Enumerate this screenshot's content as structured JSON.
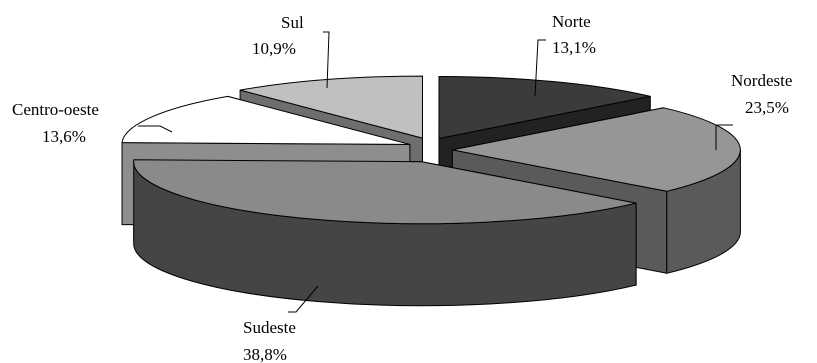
{
  "chart_data": {
    "type": "pie",
    "title": "",
    "categories": [
      "Norte",
      "Nordeste",
      "Sudeste",
      "Centro-oeste",
      "Sul"
    ],
    "values": [
      13.1,
      23.5,
      38.8,
      13.6,
      10.9
    ],
    "labels": [
      {
        "name": "Norte",
        "value": "13,1%"
      },
      {
        "name": "Nordeste",
        "value": "23,5%"
      },
      {
        "name": "Sudeste",
        "value": "38,8%"
      },
      {
        "name": "Centro-oeste",
        "value": "13,6%"
      },
      {
        "name": "Sul",
        "value": "10,9%"
      }
    ],
    "colors": {
      "Norte": {
        "top": "#3b3b3b",
        "side": "#222222"
      },
      "Nordeste": {
        "top": "#969696",
        "side": "#5a5a5a"
      },
      "Sudeste": {
        "top": "#8a8a8a",
        "side": "#454545"
      },
      "Centro-oeste": {
        "top": "#ffffff",
        "side": "#8e8e8e"
      },
      "Sul": {
        "top": "#c0c0c0",
        "side": "#6e6e6e"
      }
    },
    "style": "3d-exploded",
    "legend": "none"
  }
}
